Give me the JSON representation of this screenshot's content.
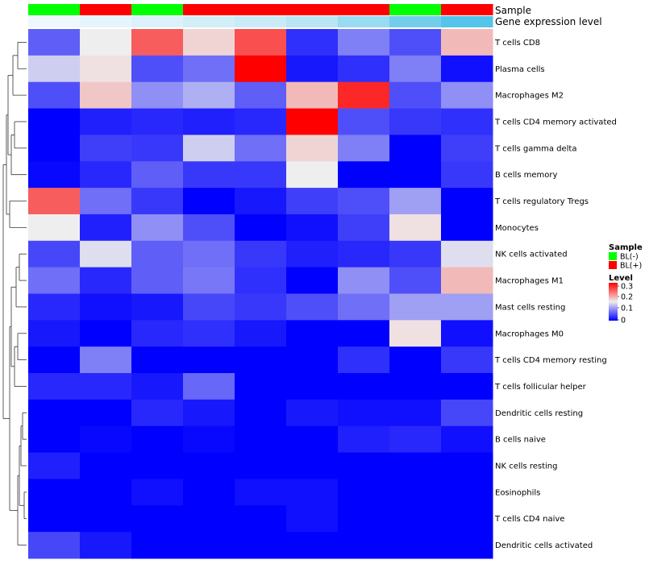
{
  "chart_data": {
    "type": "heatmap",
    "title": "",
    "annotation_tracks": [
      {
        "label": "Sample",
        "values": [
          "BL(-)",
          "BL(+)",
          "BL(-)",
          "BL(+)",
          "BL(+)",
          "BL(+)",
          "BL(+)",
          "BL(-)",
          "BL(+)"
        ]
      },
      {
        "label": "Gene expression level",
        "values": [
          0.0,
          0.05,
          0.12,
          0.18,
          0.25,
          0.35,
          0.55,
          0.8,
          1.0
        ]
      }
    ],
    "rows": [
      "T cells CD8",
      "Plasma cells",
      "Macrophages M2",
      "T cells CD4 memory activated",
      "T cells gamma delta",
      "B cells memory",
      "T cells regulatory  Tregs",
      "Monocytes",
      "NK cells activated",
      "Macrophages M1",
      "Mast cells resting",
      "Macrophages M0",
      "T cells CD4 memory resting",
      "T cells follicular helper",
      "Dendritic cells resting",
      "B cells naive",
      "NK cells resting",
      "Eosinophils",
      "T cells CD4 naive",
      "Dendritic cells activated"
    ],
    "values": [
      [
        0.06,
        0.15,
        0.26,
        0.17,
        0.27,
        0.03,
        0.08,
        0.05,
        0.19
      ],
      [
        0.13,
        0.16,
        0.05,
        0.07,
        0.33,
        0.015,
        0.03,
        0.08,
        0.01
      ],
      [
        0.05,
        0.18,
        0.09,
        0.11,
        0.06,
        0.19,
        0.3,
        0.05,
        0.09
      ],
      [
        0.0,
        0.02,
        0.025,
        0.02,
        0.025,
        0.33,
        0.05,
        0.035,
        0.03
      ],
      [
        0.0,
        0.04,
        0.035,
        0.13,
        0.07,
        0.17,
        0.08,
        0.0,
        0.04
      ],
      [
        0.005,
        0.025,
        0.06,
        0.035,
        0.035,
        0.15,
        0.0,
        0.0,
        0.035
      ],
      [
        0.26,
        0.07,
        0.035,
        0.0,
        0.015,
        0.04,
        0.05,
        0.1,
        0.0
      ],
      [
        0.15,
        0.02,
        0.09,
        0.05,
        0.0,
        0.01,
        0.04,
        0.16,
        0.0
      ],
      [
        0.045,
        0.14,
        0.06,
        0.07,
        0.035,
        0.02,
        0.025,
        0.035,
        0.14
      ],
      [
        0.07,
        0.025,
        0.06,
        0.075,
        0.03,
        0.0,
        0.09,
        0.05,
        0.19
      ],
      [
        0.025,
        0.01,
        0.015,
        0.045,
        0.035,
        0.05,
        0.07,
        0.1,
        0.1
      ],
      [
        0.015,
        0.0,
        0.025,
        0.03,
        0.015,
        0.0,
        0.0,
        0.16,
        0.01
      ],
      [
        0.0,
        0.08,
        0.0,
        0.0,
        0.0,
        0.0,
        0.03,
        0.0,
        0.035
      ],
      [
        0.025,
        0.025,
        0.015,
        0.065,
        0.0,
        0.0,
        0.0,
        0.0,
        0.0
      ],
      [
        0.0,
        0.0,
        0.025,
        0.015,
        0.0,
        0.015,
        0.01,
        0.01,
        0.045
      ],
      [
        0.0,
        0.005,
        0.0,
        0.005,
        0.0,
        0.0,
        0.02,
        0.025,
        0.01
      ],
      [
        0.02,
        0.0,
        0.0,
        0.0,
        0.0,
        0.0,
        0.0,
        0.0,
        0.0
      ],
      [
        0.0,
        0.0,
        0.01,
        0.0,
        0.01,
        0.01,
        0.0,
        0.0,
        0.0
      ],
      [
        0.0,
        0.0,
        0.0,
        0.0,
        0.0,
        0.01,
        0.0,
        0.0,
        0.0
      ],
      [
        0.045,
        0.015,
        0.0,
        0.0,
        0.0,
        0.0,
        0.0,
        0.0,
        0.0
      ]
    ],
    "color_scale": {
      "min": 0,
      "mid": 0.15,
      "max": 0.33,
      "low_color": "#0000ff",
      "mid_color": "#eeeeee",
      "high_color": "#ff0000"
    },
    "legends": {
      "sample": {
        "title": "Sample",
        "items": [
          {
            "label": "BL(-)",
            "color": "#00ff00"
          },
          {
            "label": "BL(+)",
            "color": "#ff0000"
          }
        ]
      },
      "level": {
        "title": "Level",
        "ticks": [
          "0.3",
          "0.2",
          "0.1",
          "0"
        ]
      }
    },
    "dendrogram": "row clustering tree on left side"
  }
}
